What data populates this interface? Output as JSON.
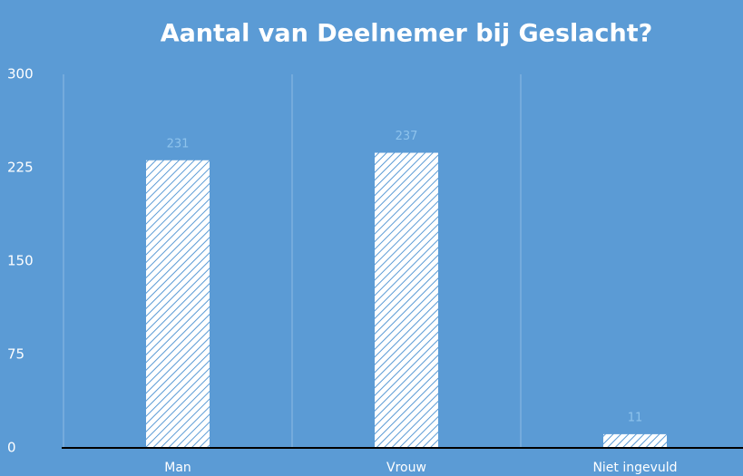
{
  "chart_data": {
    "type": "bar",
    "title": "Aantal van Deelnemer bij Geslacht?",
    "categories": [
      "Man",
      "Vrouw",
      "Niet ingevuld"
    ],
    "values": [
      231,
      237,
      11
    ],
    "color": "#ffffff",
    "background": "#5b9bd5",
    "ylim": [
      0,
      300
    ],
    "yticks": [
      0,
      75,
      150,
      225,
      300
    ],
    "grid": true
  }
}
